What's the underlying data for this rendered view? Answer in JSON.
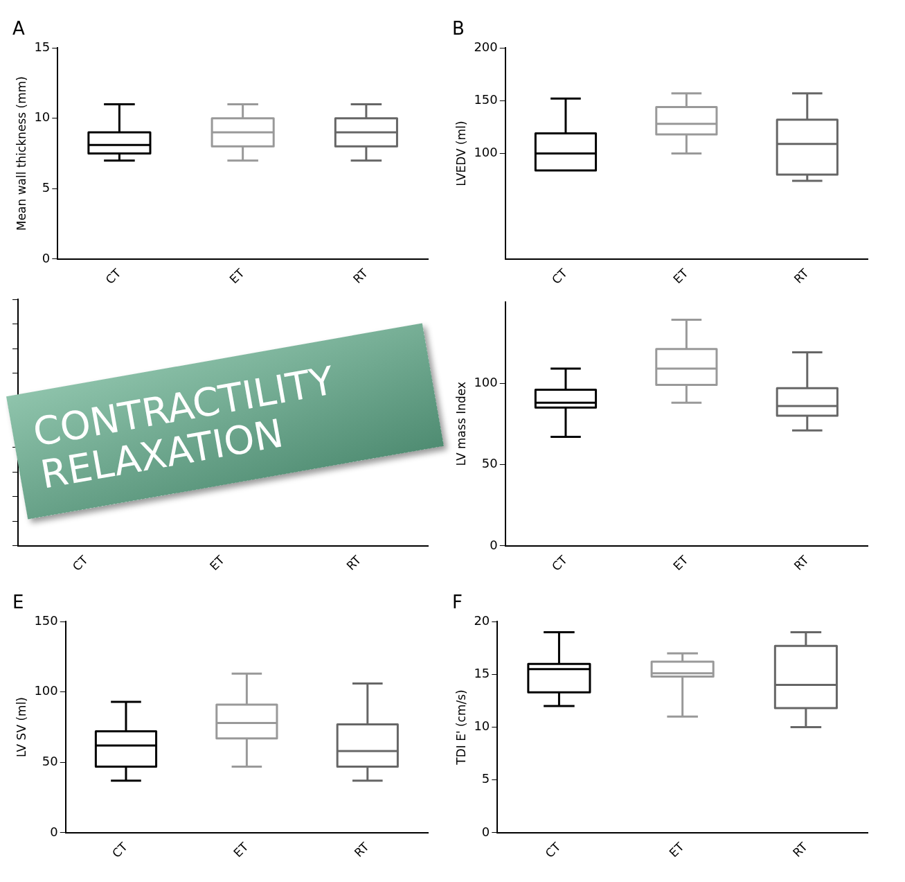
{
  "chart_data": [
    {
      "type": "box",
      "title": "A",
      "ylabel": "Mean wall thickness (mm)",
      "categories": [
        "CT",
        "ET",
        "RT"
      ],
      "colors": [
        "#000000",
        "#999999",
        "#666666"
      ],
      "ylim": [
        0,
        15
      ],
      "yticks": [
        0,
        5,
        10,
        15
      ],
      "grid": false,
      "legend": false,
      "boxes": [
        {
          "low": 7,
          "q1": 7.5,
          "median": 8.1,
          "q3": 9,
          "high": 11
        },
        {
          "low": 7,
          "q1": 8,
          "median": 9,
          "q3": 10,
          "high": 11
        },
        {
          "low": 7,
          "q1": 8,
          "median": 9,
          "q3": 10,
          "high": 11
        }
      ]
    },
    {
      "type": "box",
      "title": "B",
      "ylabel": "LVEDV (ml)",
      "categories": [
        "CT",
        "ET",
        "RT"
      ],
      "colors": [
        "#000000",
        "#999999",
        "#666666"
      ],
      "ylim": [
        0,
        200
      ],
      "yticks": [
        100,
        150,
        200
      ],
      "grid": false,
      "legend": false,
      "boxes": [
        {
          "low": null,
          "q1": 84,
          "median": 100,
          "q3": 119,
          "high": 152
        },
        {
          "low": 100,
          "q1": 118,
          "median": 128,
          "q3": 144,
          "high": 157
        },
        {
          "low": 74,
          "q1": 80,
          "median": 109,
          "q3": 132,
          "high": 157
        }
      ]
    },
    {
      "type": "other",
      "categories": [
        "CT",
        "ET",
        "RT"
      ]
    },
    {
      "type": "box",
      "ylabel": "LV mass Index",
      "categories": [
        "CT",
        "ET",
        "RT"
      ],
      "colors": [
        "#000000",
        "#999999",
        "#666666"
      ],
      "ylim": [
        0,
        150
      ],
      "yticks": [
        0,
        50,
        100
      ],
      "grid": false,
      "legend": false,
      "boxes": [
        {
          "low": 67,
          "q1": 85,
          "median": 88,
          "q3": 96,
          "high": 109
        },
        {
          "low": 88,
          "q1": 99,
          "median": 109,
          "q3": 121,
          "high": 139
        },
        {
          "low": 71,
          "q1": 80,
          "median": 86,
          "q3": 97,
          "high": 119
        }
      ]
    },
    {
      "type": "box",
      "title": "E",
      "ylabel": "LV SV (ml)",
      "categories": [
        "CT",
        "ET",
        "RT"
      ],
      "colors": [
        "#000000",
        "#999999",
        "#666666"
      ],
      "ylim": [
        0,
        150
      ],
      "yticks": [
        0,
        50,
        100,
        150
      ],
      "grid": false,
      "legend": false,
      "boxes": [
        {
          "low": 37,
          "q1": 47,
          "median": 62,
          "q3": 72,
          "high": 93
        },
        {
          "low": 47,
          "q1": 67,
          "median": 78,
          "q3": 91,
          "high": 113
        },
        {
          "low": 37,
          "q1": 47,
          "median": 58,
          "q3": 77,
          "high": 106
        }
      ]
    },
    {
      "type": "box",
      "title": "F",
      "ylabel": "TDI E' (cm/s)",
      "categories": [
        "CT",
        "ET",
        "RT"
      ],
      "colors": [
        "#000000",
        "#999999",
        "#666666"
      ],
      "ylim": [
        0,
        20
      ],
      "yticks": [
        0,
        5,
        10,
        15,
        20
      ],
      "grid": false,
      "legend": false,
      "boxes": [
        {
          "low": 12,
          "q1": 13.3,
          "median": 15.5,
          "q3": 16,
          "high": 19
        },
        {
          "low": 11,
          "q1": 14.8,
          "median": 15.1,
          "q3": 16.2,
          "high": 17
        },
        {
          "low": 10,
          "q1": 11.8,
          "median": 14,
          "q3": 17.7,
          "high": 19
        }
      ]
    },
    {
      "type": "other",
      "annotations": [
        "CONTRACTILITY",
        "RELAXATION"
      ]
    }
  ]
}
